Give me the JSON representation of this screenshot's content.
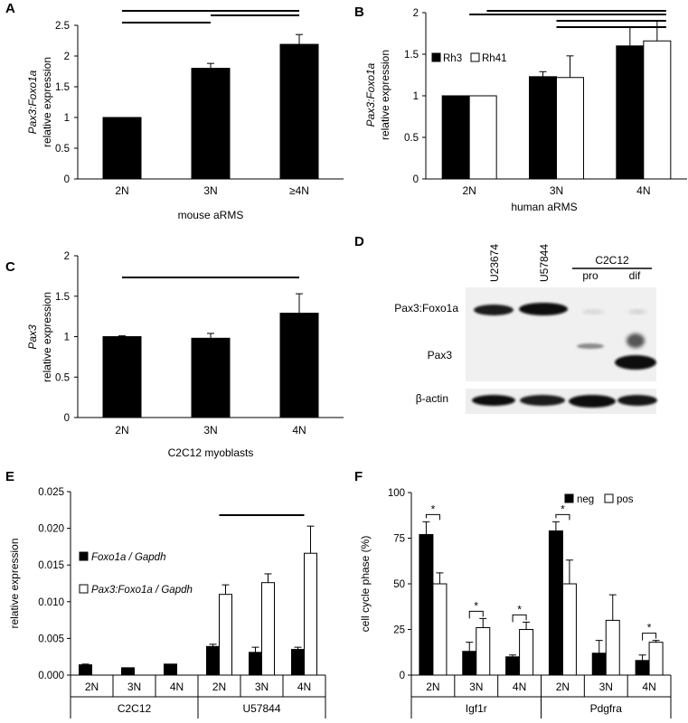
{
  "figure": {
    "width": 761,
    "height": 800
  },
  "chart_data": [
    {
      "id": "A",
      "panel_label": "A",
      "type": "bar",
      "categories": [
        "2N",
        "3N",
        "≥4N"
      ],
      "series": [
        {
          "name": "",
          "values": [
            1.0,
            1.8,
            2.19
          ],
          "errors": [
            0,
            0.08,
            0.16
          ],
          "color": "#000000"
        }
      ],
      "ylabel_line1": "Pax3:Foxo1a",
      "ylabel_line2": "relative expression",
      "xlabel": "mouse aRMS",
      "ylim": [
        0,
        2.5
      ],
      "yticks": [
        "0",
        "0.5",
        "1",
        "1.5",
        "2",
        "2.5"
      ],
      "ytick_values": [
        0,
        0.5,
        1,
        1.5,
        2,
        2.5
      ],
      "sig_lines": [
        [
          0,
          2
        ],
        [
          0,
          1
        ],
        [
          1,
          2
        ]
      ],
      "legend": []
    },
    {
      "id": "B",
      "panel_label": "B",
      "type": "bar",
      "categories": [
        "2N",
        "3N",
        "4N"
      ],
      "series": [
        {
          "name": "Rh3",
          "values": [
            1.0,
            1.23,
            1.6
          ],
          "errors": [
            0,
            0.06,
            0.22
          ],
          "color": "#000000"
        },
        {
          "name": "Rh41",
          "values": [
            1.0,
            1.22,
            1.66
          ],
          "errors": [
            0,
            0.26,
            0.24
          ],
          "color": "#ffffff"
        }
      ],
      "ylabel_line1": "Pax3:Foxo1a",
      "ylabel_line2": "relative expression",
      "xlabel": "human aRMS",
      "ylim": [
        0,
        2
      ],
      "yticks": [
        "0",
        "0.5",
        "1",
        "1.5",
        "2"
      ],
      "ytick_values": [
        0,
        0.5,
        1,
        1.5,
        2
      ],
      "sig_lines": [
        [
          0,
          2
        ],
        [
          0.2,
          2
        ],
        [
          1,
          2
        ],
        [
          1,
          2
        ]
      ],
      "legend": [
        "Rh3",
        "Rh41"
      ]
    },
    {
      "id": "C",
      "panel_label": "C",
      "type": "bar",
      "categories": [
        "2N",
        "3N",
        "4N"
      ],
      "series": [
        {
          "name": "",
          "values": [
            1.0,
            0.98,
            1.29
          ],
          "errors": [
            0.01,
            0.06,
            0.24
          ],
          "color": "#000000"
        }
      ],
      "ylabel_line1": "Pax3",
      "ylabel_line2": "relative expression",
      "xlabel": "C2C12 myoblasts",
      "ylim": [
        0,
        2
      ],
      "yticks": [
        "0",
        "0.5",
        "1",
        "1.5",
        "2"
      ],
      "ytick_values": [
        0,
        0.5,
        1,
        1.5,
        2
      ],
      "sig_lines": [
        [
          0,
          2
        ]
      ],
      "legend": []
    },
    {
      "id": "E",
      "panel_label": "E",
      "type": "bar",
      "categories": [
        "2N",
        "3N",
        "4N",
        "2N",
        "3N",
        "4N"
      ],
      "groups": [
        {
          "label": "C2C12",
          "range": [
            0,
            2
          ]
        },
        {
          "label": "U57844",
          "range": [
            3,
            5
          ]
        }
      ],
      "series": [
        {
          "name": "Foxo1a / Gapdh",
          "values": [
            0.0014,
            0.001,
            0.0015,
            0.0039,
            0.0031,
            0.0035
          ],
          "errors": [
            0.0001,
            0,
            0,
            0.0003,
            0.0007,
            0.0003
          ],
          "color": "#000000"
        },
        {
          "name": "Pax3:Foxo1a / Gapdh",
          "values": [
            0,
            0,
            0,
            0.011,
            0.0126,
            0.0166
          ],
          "errors": [
            0,
            0,
            0,
            0.0013,
            0.0012,
            0.0037
          ],
          "color": "#ffffff"
        }
      ],
      "ylabel": "relative expression",
      "ylim": [
        0,
        0.025
      ],
      "yticks": [
        "0.000",
        "0.005",
        "0.010",
        "0.015",
        "0.020",
        "0.025"
      ],
      "ytick_values": [
        0,
        0.005,
        0.01,
        0.015,
        0.02,
        0.025
      ],
      "sig_lines": [
        [
          3,
          5
        ]
      ],
      "legend": [
        "Foxo1a / Gapdh",
        "Pax3:Foxo1a / Gapdh"
      ]
    },
    {
      "id": "F",
      "panel_label": "F",
      "type": "bar",
      "categories": [
        "2N",
        "3N",
        "4N",
        "2N",
        "3N",
        "4N"
      ],
      "groups": [
        {
          "label": "Igf1r",
          "range": [
            0,
            2
          ]
        },
        {
          "label": "Pdgfra",
          "range": [
            3,
            5
          ]
        }
      ],
      "series": [
        {
          "name": "neg",
          "values": [
            77,
            13,
            10,
            79,
            12,
            8
          ],
          "errors": [
            7,
            5,
            1,
            5,
            7,
            3
          ],
          "color": "#000000"
        },
        {
          "name": "pos",
          "values": [
            50,
            26,
            25,
            50,
            30,
            18
          ],
          "errors": [
            6,
            5,
            4,
            13,
            14,
            1
          ],
          "color": "#ffffff"
        }
      ],
      "ylabel": "cell cycle phase (%)",
      "ylim": [
        0,
        100
      ],
      "yticks": [
        "0",
        "25",
        "50",
        "75",
        "100"
      ],
      "ytick_values": [
        0,
        25,
        50,
        75,
        100
      ],
      "significance": [
        {
          "category": 0,
          "symbol": "*"
        },
        {
          "category": 1,
          "symbol": "*"
        },
        {
          "category": 2,
          "symbol": "*"
        },
        {
          "category": 3,
          "symbol": "*"
        },
        {
          "category": 5,
          "symbol": "*"
        }
      ],
      "legend": [
        "neg",
        "pos"
      ]
    }
  ],
  "blot": {
    "panel_label": "D",
    "lanes": [
      "U23674",
      "U57844",
      "pro",
      "dif"
    ],
    "group_label": "C2C12",
    "rows": [
      "Pax3:Foxo1a",
      "Pax3",
      "β-actin"
    ]
  }
}
